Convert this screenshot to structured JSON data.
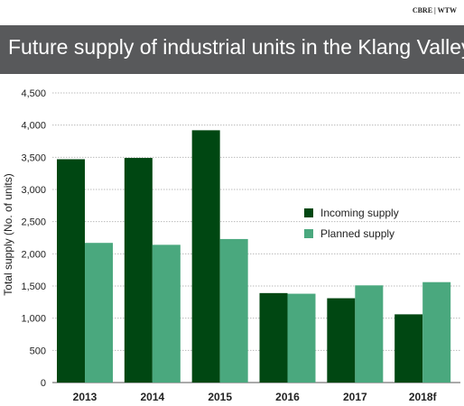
{
  "source": "CBRE | WTW",
  "chart_data": {
    "type": "bar",
    "title": "Future supply of industrial units in the Klang Valley",
    "xlabel": "",
    "ylabel": "Total supply (No. of units)",
    "categories": [
      "2013",
      "2014",
      "2015",
      "2016",
      "2017",
      "2018f"
    ],
    "series": [
      {
        "name": "Incoming supply",
        "color": "#004712",
        "values": [
          3470,
          3490,
          3920,
          1390,
          1310,
          1060
        ]
      },
      {
        "name": "Planned supply",
        "color": "#4aa87e",
        "values": [
          2170,
          2140,
          2230,
          1380,
          1510,
          1560
        ]
      }
    ],
    "ylim": [
      0,
      4500
    ],
    "yticks": [
      0,
      500,
      1000,
      1500,
      2000,
      2500,
      3000,
      3500,
      4000,
      4500
    ],
    "ytick_labels": [
      "0",
      "500",
      "1,000",
      "1,500",
      "2,000",
      "2,500",
      "3,000",
      "3,500",
      "4,000",
      "4,500"
    ],
    "grid": true,
    "legend_position": "right"
  }
}
